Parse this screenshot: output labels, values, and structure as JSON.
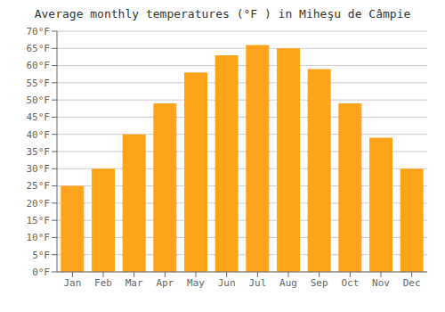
{
  "chart_data": {
    "type": "bar",
    "title": "Average monthly temperatures (°F ) in Miheşu de Câmpie",
    "categories": [
      "Jan",
      "Feb",
      "Mar",
      "Apr",
      "May",
      "Jun",
      "Jul",
      "Aug",
      "Sep",
      "Oct",
      "Nov",
      "Dec"
    ],
    "values": [
      25,
      30,
      40,
      49,
      58,
      63,
      66,
      65,
      59,
      49,
      39,
      30
    ],
    "color": "#FFA31A",
    "ylim": [
      0,
      70
    ],
    "yticks": [
      {
        "value": 0,
        "label": "0°F"
      },
      {
        "value": 5,
        "label": "5°F"
      },
      {
        "value": 10,
        "label": "10°F"
      },
      {
        "value": 15,
        "label": "15°F"
      },
      {
        "value": 20,
        "label": "20°F"
      },
      {
        "value": 25,
        "label": "25°F"
      },
      {
        "value": 30,
        "label": "30°F"
      },
      {
        "value": 35,
        "label": "35°F"
      },
      {
        "value": 40,
        "label": "40°F"
      },
      {
        "value": 45,
        "label": "45°F"
      },
      {
        "value": 50,
        "label": "50°F"
      },
      {
        "value": 55,
        "label": "55°F"
      },
      {
        "value": 60,
        "label": "60°F"
      },
      {
        "value": 65,
        "label": "65°F"
      },
      {
        "value": 70,
        "label": "70°F"
      }
    ],
    "grid": true
  }
}
